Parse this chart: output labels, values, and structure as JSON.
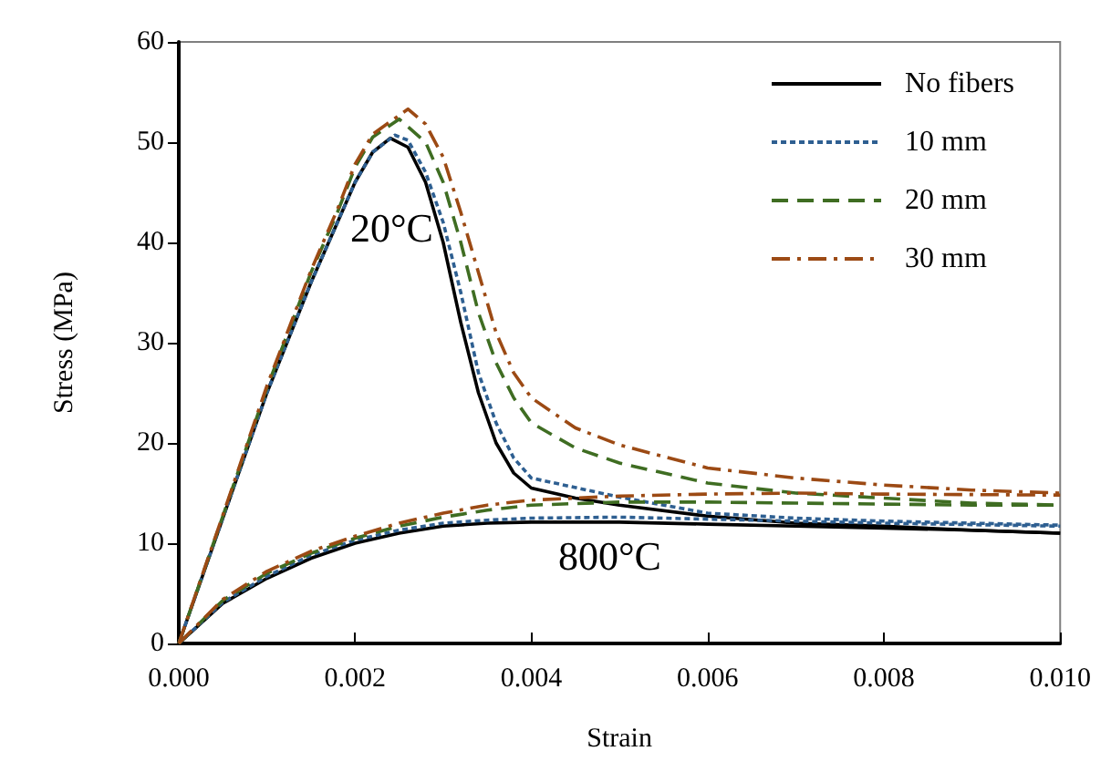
{
  "chart_data": {
    "type": "line",
    "xlabel": "Strain",
    "ylabel": "Stress (MPa)",
    "xlim": [
      0,
      0.01
    ],
    "xticks": [
      {
        "value": 0,
        "label": "0.000"
      },
      {
        "value": 0.002,
        "label": "0.002"
      },
      {
        "value": 0.004,
        "label": "0.004"
      },
      {
        "value": 0.006,
        "label": "0.006"
      },
      {
        "value": 0.008,
        "label": "0.008"
      },
      {
        "value": 0.01,
        "label": "0.010"
      }
    ],
    "ylim": [
      0,
      60
    ],
    "yticks": [
      0,
      10,
      20,
      30,
      40,
      50,
      60
    ],
    "grid": false,
    "legend": "top right",
    "marker": "none",
    "annotations": [
      "20°C",
      "800°C"
    ],
    "series": [
      {
        "name": "No fibers",
        "color": "#000000",
        "line_style": "solid",
        "x": [
          0,
          0.0005,
          0.001,
          0.0015,
          0.0018,
          0.002,
          0.0022,
          0.0024,
          0.0026,
          0.0028,
          0.003,
          0.0032,
          0.0034,
          0.0036,
          0.0038,
          0.004,
          0.0045,
          0.005,
          0.006,
          0.007,
          0.008,
          0.009,
          0.01
        ],
        "values": [
          0,
          12.5,
          25,
          36,
          42,
          46,
          49,
          50.4,
          49.5,
          46,
          40,
          32,
          25,
          20,
          17,
          15.5,
          14.5,
          13.8,
          12.7,
          12,
          11.7,
          11.3,
          11
        ]
      },
      {
        "name": "10 mm",
        "color": "#2e5f91",
        "line_style": "dotted",
        "x": [
          0,
          0.0005,
          0.001,
          0.0015,
          0.0018,
          0.002,
          0.0022,
          0.00245,
          0.0026,
          0.0028,
          0.003,
          0.0032,
          0.0034,
          0.0036,
          0.0038,
          0.004,
          0.005,
          0.006,
          0.007,
          0.008,
          0.01
        ],
        "values": [
          0,
          12.5,
          25,
          36,
          42,
          46,
          49,
          50.7,
          50.2,
          47,
          42,
          35,
          27,
          22,
          18.5,
          16.5,
          14.6,
          13,
          12.5,
          12.2,
          11.8
        ]
      },
      {
        "name": "20 mm",
        "color": "#3f6d22",
        "line_style": "dashed",
        "x": [
          0,
          0.0005,
          0.001,
          0.0015,
          0.0018,
          0.002,
          0.0022,
          0.0025,
          0.0028,
          0.003,
          0.0032,
          0.0034,
          0.0036,
          0.0038,
          0.004,
          0.0045,
          0.005,
          0.006,
          0.007,
          0.008,
          0.009,
          0.01
        ],
        "values": [
          0,
          12.7,
          25.5,
          37,
          43,
          47.5,
          50.5,
          52.3,
          50,
          46,
          40,
          33,
          28,
          24.5,
          22,
          19.5,
          18,
          16,
          15,
          14.5,
          14,
          13.8
        ]
      },
      {
        "name": "30 mm",
        "color": "#9c4a14",
        "line_style": "dashdot",
        "x": [
          0,
          0.0005,
          0.001,
          0.0015,
          0.0018,
          0.002,
          0.0022,
          0.0026,
          0.0028,
          0.003,
          0.0032,
          0.0034,
          0.0036,
          0.0038,
          0.004,
          0.0045,
          0.005,
          0.006,
          0.007,
          0.008,
          0.009,
          0.01
        ],
        "values": [
          0,
          12.8,
          25.7,
          37.2,
          43.3,
          47.8,
          50.8,
          53.3,
          51.8,
          48.5,
          43,
          37,
          31,
          27,
          24.5,
          21.5,
          19.8,
          17.5,
          16.5,
          15.8,
          15.3,
          15
        ]
      },
      {
        "color": "#000000",
        "line_style": "solid",
        "x": [
          0,
          0.0005,
          0.001,
          0.0015,
          0.002,
          0.0025,
          0.003,
          0.0035,
          0.004,
          0.005,
          0.006,
          0.007,
          0.008,
          0.009,
          0.01
        ],
        "values": [
          0,
          4,
          6.5,
          8.5,
          10,
          11,
          11.7,
          12,
          12.1,
          12.1,
          11.9,
          11.7,
          11.5,
          11.3,
          11
        ]
      },
      {
        "color": "#2e5f91",
        "line_style": "dotted",
        "x": [
          0,
          0.0005,
          0.001,
          0.0015,
          0.002,
          0.0025,
          0.003,
          0.0035,
          0.004,
          0.005,
          0.006,
          0.008,
          0.01
        ],
        "values": [
          0,
          4.1,
          6.7,
          8.8,
          10.3,
          11.3,
          12,
          12.3,
          12.5,
          12.6,
          12.4,
          12,
          11.7
        ]
      },
      {
        "color": "#3f6d22",
        "line_style": "dashed",
        "x": [
          0,
          0.0005,
          0.001,
          0.0015,
          0.002,
          0.0025,
          0.003,
          0.0035,
          0.004,
          0.005,
          0.006,
          0.007,
          0.008,
          0.009,
          0.01
        ],
        "values": [
          0,
          4.3,
          7,
          9,
          10.5,
          11.7,
          12.6,
          13.3,
          13.8,
          14.1,
          14.1,
          14,
          13.9,
          13.8,
          13.8
        ]
      },
      {
        "color": "#9c4a14",
        "line_style": "dashdot",
        "x": [
          0,
          0.0005,
          0.001,
          0.0015,
          0.002,
          0.0025,
          0.003,
          0.0035,
          0.004,
          0.005,
          0.006,
          0.007,
          0.008,
          0.01
        ],
        "values": [
          0,
          4.4,
          7.2,
          9.2,
          10.7,
          12,
          13,
          13.8,
          14.3,
          14.7,
          14.9,
          15,
          14.9,
          14.8
        ]
      }
    ]
  }
}
